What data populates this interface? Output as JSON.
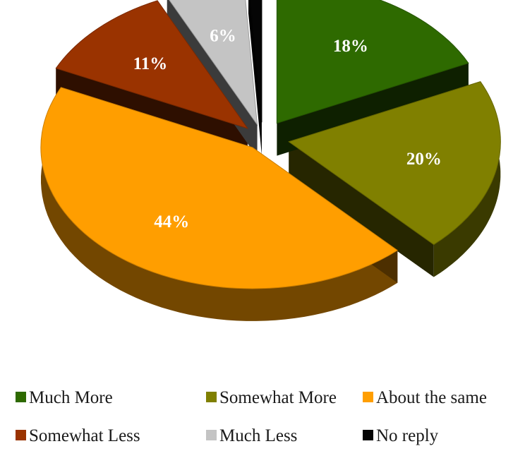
{
  "chart_data": {
    "type": "pie",
    "title": "",
    "categories": [
      "Much More",
      "Somewhat More",
      "About the same",
      "Somewhat Less",
      "Much Less",
      "No reply"
    ],
    "values": [
      18,
      20,
      44,
      11,
      6,
      1
    ],
    "data_labels": [
      "18%",
      "20%",
      "44%",
      "11%",
      "6%",
      ""
    ],
    "colors": [
      "#2e6a00",
      "#808000",
      "#ff9e00",
      "#9a3300",
      "#c4c4c4",
      "#050505"
    ],
    "style": "3d-exploded",
    "legend_position": "bottom"
  }
}
